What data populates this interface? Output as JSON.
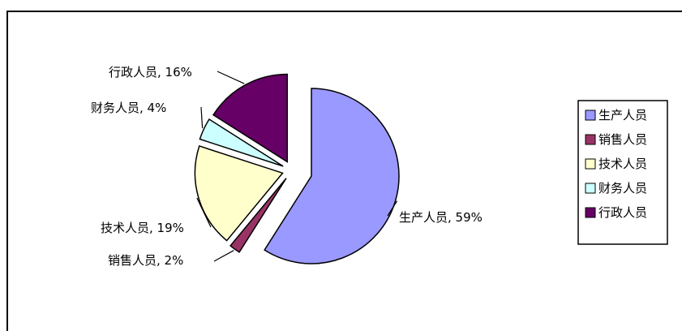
{
  "chart_data": {
    "type": "pie",
    "title": "",
    "exploded": true,
    "legend_position": "right",
    "slices": [
      {
        "name": "生产人员",
        "value": 59,
        "label": "生产人员, 59%",
        "color": "#9999ff"
      },
      {
        "name": "销售人员",
        "value": 2,
        "label": "销售人员, 2%",
        "color": "#993366"
      },
      {
        "name": "技术人员",
        "value": 19,
        "label": "技术人员, 19%",
        "color": "#ffffcc"
      },
      {
        "name": "财务人员",
        "value": 4,
        "label": "财务人员, 4%",
        "color": "#ccffff"
      },
      {
        "name": "行政人员",
        "value": 16,
        "label": "行政人员, 16%",
        "color": "#660066"
      }
    ],
    "legend": [
      "生产人员",
      "销售人员",
      "技术人员",
      "财务人员",
      "行政人员"
    ]
  }
}
